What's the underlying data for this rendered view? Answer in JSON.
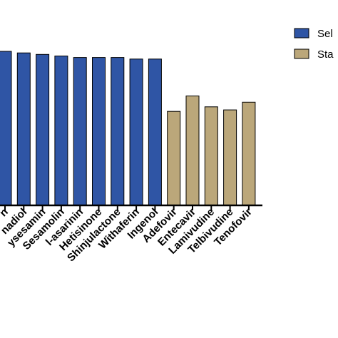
{
  "chart_data": {
    "type": "bar",
    "categories": [
      "n",
      "nadiol",
      "ysesamin",
      "Sesamolin",
      "l-asarinin",
      "Hetisinone",
      "Shinjulactone",
      "Withaferin",
      "Ingenol",
      "Adefovir",
      "Entecavir",
      "Lamivudine",
      "Telbivudine",
      "Tenofovir"
    ],
    "series": [
      {
        "name": "Sel",
        "color": "#2f55a5",
        "values": [
          1.0,
          0.99,
          0.98,
          0.97,
          0.96,
          0.96,
          0.96,
          0.95,
          0.95,
          null,
          null,
          null,
          null,
          null
        ]
      },
      {
        "name": "Sta",
        "color": "#bba77a",
        "values": [
          null,
          null,
          null,
          null,
          null,
          null,
          null,
          null,
          null,
          0.61,
          0.71,
          0.64,
          0.62,
          0.67
        ]
      }
    ],
    "title": "",
    "xlabel": "",
    "ylabel": "",
    "ylim": [
      0,
      1.0
    ],
    "grid": false,
    "legend_position": "top-right"
  }
}
